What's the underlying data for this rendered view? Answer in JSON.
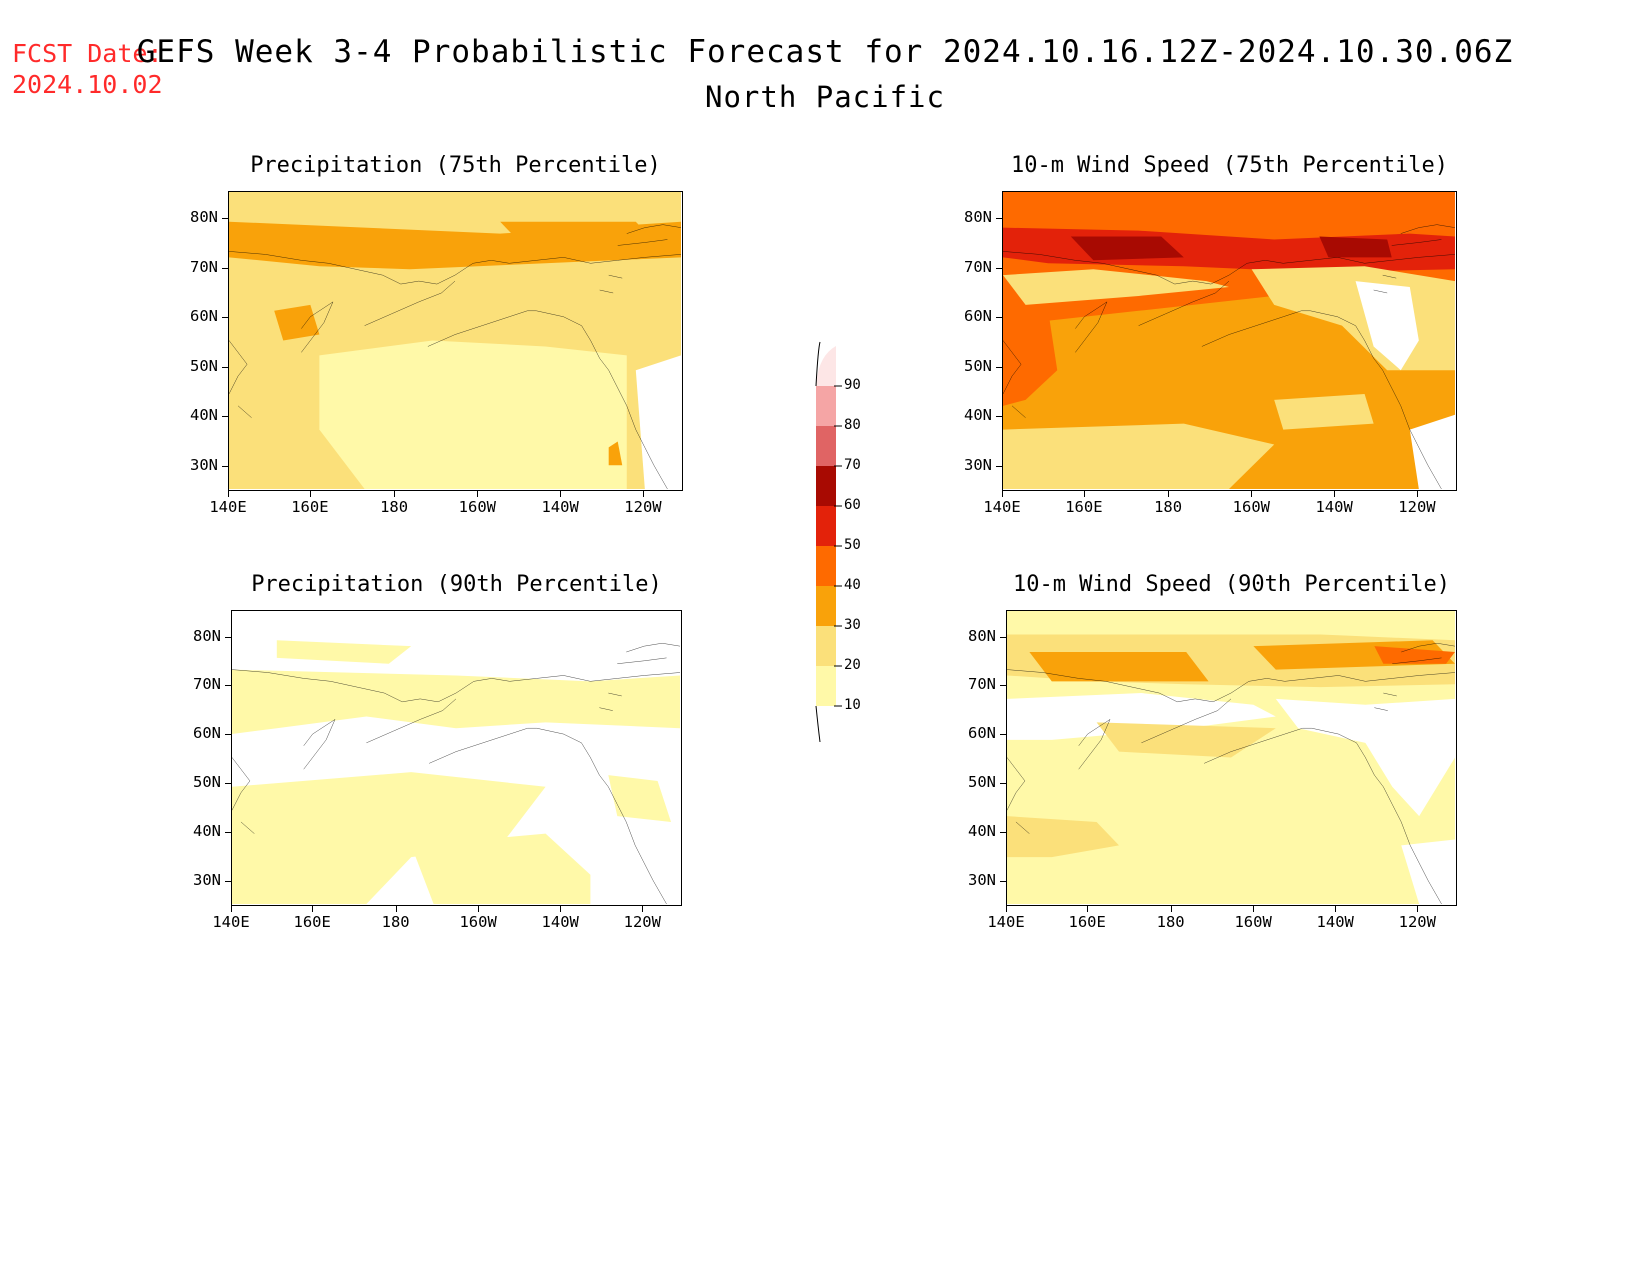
{
  "header": {
    "fcst_label": "FCST Date:",
    "fcst_date": "2024.10.02",
    "title": "GEFS Week 3-4 Probabilistic Forecast for 2024.10.16.12Z-2024.10.30.06Z",
    "region": "North Pacific"
  },
  "axes": {
    "lat_ticks": [
      "80N",
      "70N",
      "60N",
      "50N",
      "40N",
      "30N"
    ],
    "lon_ticks": [
      "140E",
      "160E",
      "180",
      "160W",
      "140W",
      "120W"
    ]
  },
  "panels": [
    {
      "title": "Precipitation (75th Percentile)"
    },
    {
      "title": "10-m Wind Speed (75th Percentile)"
    },
    {
      "title": "Precipitation (90th Percentile)"
    },
    {
      "title": "10-m Wind Speed (90th Percentile)"
    }
  ],
  "colorbar": {
    "levels": [
      "10",
      "20",
      "30",
      "40",
      "50",
      "60",
      "70",
      "80",
      "90"
    ],
    "colors": [
      "#fff9a8",
      "#fbe07a",
      "#f9a20a",
      "#fe6a00",
      "#e3220a",
      "#a80a02",
      "#e06464",
      "#f5a5a5",
      "#fde6e6"
    ]
  },
  "map_colors": {
    "light_yellow": "#fff9a8",
    "yellow": "#fbe07a",
    "orange": "#f9a20a",
    "dark_orange": "#fe6a00",
    "red": "#e3220a",
    "dark_red": "#a80a02",
    "white": "#ffffff"
  }
}
